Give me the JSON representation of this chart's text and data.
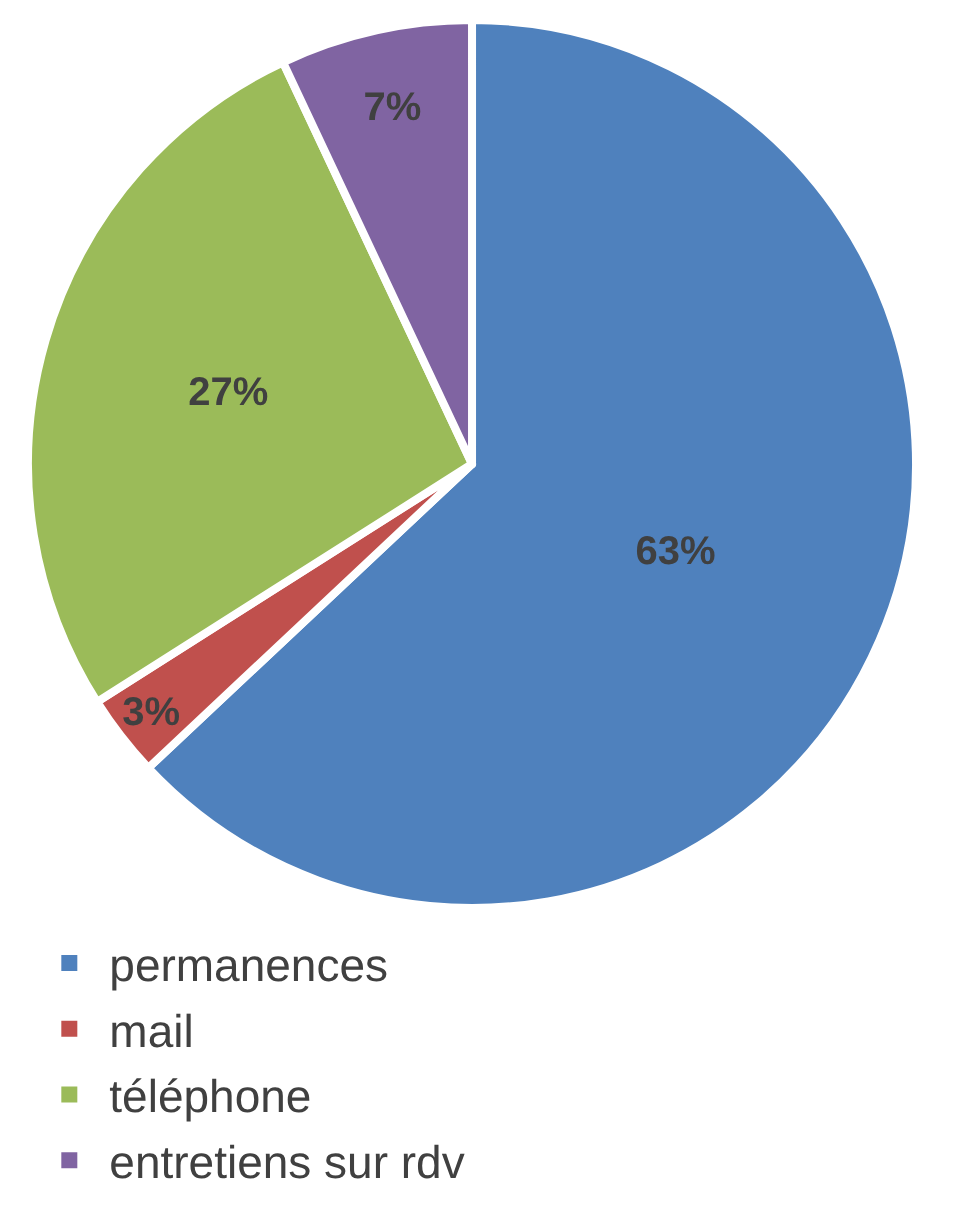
{
  "chart_data": {
    "type": "pie",
    "categories": [
      "permanences",
      "mail",
      "téléphone",
      "entretiens sur rdv"
    ],
    "values": [
      63,
      3,
      27,
      7
    ],
    "colors": [
      "#4f81bd",
      "#c0504d",
      "#9bbb59",
      "#8064a2"
    ],
    "value_labels": [
      "63%",
      "3%",
      "27%",
      "7%"
    ],
    "legend": "bottom"
  }
}
